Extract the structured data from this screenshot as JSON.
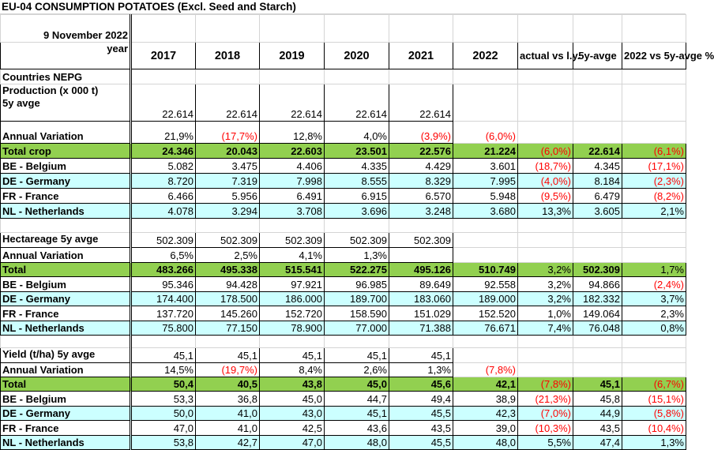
{
  "title": "EU-04 CONSUMPTION POTATOES (Excl. Seed and Starch)",
  "date": "9 November 2022",
  "year_label": "year",
  "headers": [
    "2017",
    "2018",
    "2019",
    "2020",
    "2021",
    "2022",
    "actual vs l.y.",
    "5y-avge",
    "2022 vs 5y-avge %"
  ],
  "rows": [
    {
      "kind": "plain",
      "label": "Countries NEPG",
      "cells": [
        "",
        "",
        "",
        "",
        "",
        "",
        "",
        "",
        ""
      ]
    },
    {
      "kind": "avg5y",
      "label": "Production (x 000 t)\n5y avge",
      "cells": [
        "22.614",
        "22.614",
        "22.614",
        "22.614",
        "22.614",
        "",
        "",
        "",
        ""
      ]
    },
    {
      "kind": "av",
      "label": "Annual Variation",
      "cells": [
        "21,9%",
        "(17,7%)",
        "12,8%",
        "4,0%",
        "(3,9%)",
        "(6,0%)",
        "",
        "",
        ""
      ]
    },
    {
      "kind": "total",
      "label": "Total crop",
      "cells": [
        "24.346",
        "20.043",
        "22.603",
        "23.501",
        "22.576",
        "21.224",
        "(6,0%)",
        "22.614",
        "(6,1%)"
      ]
    },
    {
      "kind": "country",
      "label": "BE - Belgium",
      "cells": [
        "5.082",
        "3.475",
        "4.406",
        "4.335",
        "4.429",
        "3.601",
        "(18,7%)",
        "4.345",
        "(17,1%)"
      ]
    },
    {
      "kind": "country-cyan",
      "label": "DE - Germany",
      "cells": [
        "8.720",
        "7.319",
        "7.998",
        "8.555",
        "8.329",
        "7.995",
        "(4,0%)",
        "8.184",
        "(2,3%)"
      ]
    },
    {
      "kind": "country",
      "label": "FR - France",
      "cells": [
        "6.466",
        "5.956",
        "6.491",
        "6.915",
        "6.570",
        "5.948",
        "(9,5%)",
        "6.479",
        "(8,2%)"
      ]
    },
    {
      "kind": "country-cyan",
      "label": "NL - Netherlands",
      "cells": [
        "4.078",
        "3.294",
        "3.708",
        "3.696",
        "3.248",
        "3.680",
        "13,3%",
        "3.605",
        "2,1%"
      ]
    },
    {
      "kind": "blank",
      "label": "",
      "cells": [
        "",
        "",
        "",
        "",
        "",
        "",
        "",
        "",
        ""
      ]
    },
    {
      "kind": "avg5y",
      "label": "Hectareage 5y avge",
      "cells": [
        "502.309",
        "502.309",
        "502.309",
        "502.309",
        "502.309",
        "",
        "",
        "",
        ""
      ]
    },
    {
      "kind": "av",
      "label": "Annual Variation",
      "cells": [
        "6,5%",
        "2,5%",
        "4,1%",
        "1,3%",
        "",
        "",
        "",
        "",
        ""
      ]
    },
    {
      "kind": "total",
      "label": "Total",
      "cells": [
        "483.266",
        "495.338",
        "515.541",
        "522.275",
        "495.126",
        "510.749",
        "3,2%",
        "502.309",
        "1,7%"
      ]
    },
    {
      "kind": "country",
      "label": "BE - Belgium",
      "cells": [
        "95.346",
        "94.428",
        "97.921",
        "96.985",
        "89.649",
        "92.558",
        "3,2%",
        "94.866",
        "(2,4%)"
      ]
    },
    {
      "kind": "country-cyan",
      "label": "DE - Germany",
      "cells": [
        "174.400",
        "178.500",
        "186.000",
        "189.700",
        "183.060",
        "189.000",
        "3,2%",
        "182.332",
        "3,7%"
      ]
    },
    {
      "kind": "country",
      "label": "FR - France",
      "cells": [
        "137.720",
        "145.260",
        "152.720",
        "158.590",
        "151.029",
        "152.520",
        "1,0%",
        "149.064",
        "2,3%"
      ]
    },
    {
      "kind": "country-cyan",
      "label": "NL - Netherlands",
      "cells": [
        "75.800",
        "77.150",
        "78.900",
        "77.000",
        "71.388",
        "76.671",
        "7,4%",
        "76.048",
        "0,8%"
      ]
    },
    {
      "kind": "blank",
      "label": "",
      "cells": [
        "",
        "",
        "",
        "",
        "",
        "",
        "",
        "",
        ""
      ]
    },
    {
      "kind": "avg5y",
      "label": "Yield (t/ha) 5y avge",
      "cells": [
        "45,1",
        "45,1",
        "45,1",
        "45,1",
        "45,1",
        "",
        "",
        "",
        ""
      ]
    },
    {
      "kind": "av",
      "label": "Annual Variation",
      "cells": [
        "14,5%",
        "(19,7%)",
        "8,4%",
        "2,6%",
        "1,3%",
        "(7,8%)",
        "",
        "",
        ""
      ]
    },
    {
      "kind": "total",
      "label": "Total",
      "cells": [
        "50,4",
        "40,5",
        "43,8",
        "45,0",
        "45,6",
        "42,1",
        "(7,8%)",
        "45,1",
        "(6,7%)"
      ]
    },
    {
      "kind": "country",
      "label": "BE - Belgium",
      "cells": [
        "53,3",
        "36,8",
        "45,0",
        "44,7",
        "49,4",
        "38,9",
        "(21,3%)",
        "45,8",
        "(15,1%)"
      ]
    },
    {
      "kind": "country-cyan",
      "label": "DE - Germany",
      "cells": [
        "50,0",
        "41,0",
        "43,0",
        "45,1",
        "45,5",
        "42,3",
        "(7,0%)",
        "44,9",
        "(5,8%)"
      ]
    },
    {
      "kind": "country",
      "label": "FR - France",
      "cells": [
        "47,0",
        "41,0",
        "42,5",
        "43,6",
        "43,5",
        "39,0",
        "(10,3%)",
        "43,5",
        "(10,4%)"
      ]
    },
    {
      "kind": "country-cyan",
      "label": "NL - Netherlands",
      "cells": [
        "53,8",
        "42,7",
        "47,0",
        "48,0",
        "45,5",
        "48,0",
        "5,5%",
        "47,4",
        "1,3%"
      ]
    }
  ]
}
